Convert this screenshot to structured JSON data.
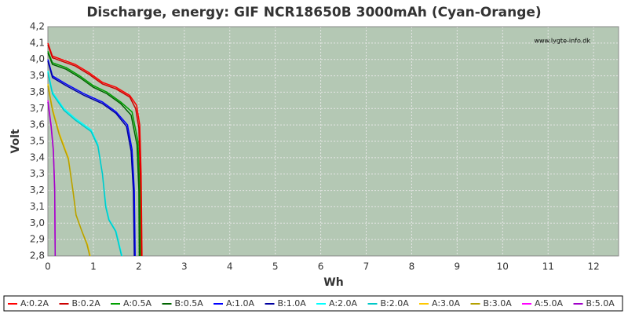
{
  "chart_data": {
    "type": "line",
    "title": "Discharge, energy: GIF NCR18650B 3000mAh (Cyan-Orange)",
    "watermark": "www.lygte-info.dk",
    "x_label": "Wh",
    "y_label": "Volt",
    "xlim": [
      0,
      12.55
    ],
    "ylim": [
      2.8,
      4.2
    ],
    "xticks": [
      0,
      1,
      2,
      3,
      4,
      5,
      6,
      7,
      8,
      9,
      10,
      11,
      12
    ],
    "yticks": [
      {
        "value": 2.8,
        "label": "2,8"
      },
      {
        "value": 2.9,
        "label": "2,9"
      },
      {
        "value": 3.0,
        "label": "3,0"
      },
      {
        "value": 3.1,
        "label": "3,1"
      },
      {
        "value": 3.2,
        "label": "3,2"
      },
      {
        "value": 3.3,
        "label": "3,3"
      },
      {
        "value": 3.4,
        "label": "3,4"
      },
      {
        "value": 3.5,
        "label": "3,5"
      },
      {
        "value": 3.6,
        "label": "3,6"
      },
      {
        "value": 3.7,
        "label": "3,7"
      },
      {
        "value": 3.8,
        "label": "3,8"
      },
      {
        "value": 3.9,
        "label": "3,9"
      },
      {
        "value": 4.0,
        "label": "4,0"
      },
      {
        "value": 4.1,
        "label": "4,1"
      },
      {
        "value": 4.2,
        "label": "4,2"
      }
    ],
    "grid": true,
    "legend": "bottom",
    "series": [
      {
        "name": "A:0.2A",
        "color": "#ff0000",
        "x": [
          0,
          0.1,
          0.3,
          0.6,
          0.9,
          1.2,
          1.5,
          1.8,
          1.95,
          2.02,
          2.05,
          2.07
        ],
        "values": [
          4.1,
          4.02,
          4.0,
          3.97,
          3.92,
          3.86,
          3.83,
          3.78,
          3.72,
          3.6,
          3.3,
          2.8
        ]
      },
      {
        "name": "B:0.2A",
        "color": "#cc0000",
        "x": [
          0,
          0.1,
          0.3,
          0.6,
          0.9,
          1.2,
          1.5,
          1.8,
          1.93,
          2.0,
          2.03,
          2.05
        ],
        "values": [
          4.09,
          4.01,
          3.99,
          3.96,
          3.91,
          3.85,
          3.82,
          3.77,
          3.7,
          3.58,
          3.3,
          2.8
        ]
      },
      {
        "name": "A:0.5A",
        "color": "#00a000",
        "x": [
          0,
          0.1,
          0.4,
          0.7,
          1.0,
          1.3,
          1.6,
          1.85,
          1.98,
          2.02,
          2.03
        ],
        "values": [
          4.05,
          3.98,
          3.95,
          3.9,
          3.84,
          3.8,
          3.74,
          3.68,
          3.5,
          3.2,
          2.8
        ]
      },
      {
        "name": "B:0.5A",
        "color": "#006400",
        "x": [
          0,
          0.1,
          0.4,
          0.7,
          1.0,
          1.3,
          1.6,
          1.83,
          1.96,
          2.0,
          2.01
        ],
        "values": [
          4.04,
          3.97,
          3.94,
          3.89,
          3.83,
          3.79,
          3.73,
          3.66,
          3.48,
          3.2,
          2.8
        ]
      },
      {
        "name": "A:1.0A",
        "color": "#0000ff",
        "x": [
          0,
          0.1,
          0.4,
          0.8,
          1.2,
          1.5,
          1.75,
          1.85,
          1.9,
          1.92
        ],
        "values": [
          4.0,
          3.9,
          3.85,
          3.79,
          3.74,
          3.68,
          3.6,
          3.45,
          3.2,
          2.8
        ]
      },
      {
        "name": "B:1.0A",
        "color": "#0000a0",
        "x": [
          0,
          0.1,
          0.4,
          0.8,
          1.2,
          1.5,
          1.73,
          1.83,
          1.88,
          1.9
        ],
        "values": [
          3.99,
          3.89,
          3.84,
          3.78,
          3.73,
          3.67,
          3.59,
          3.44,
          3.2,
          2.8
        ]
      },
      {
        "name": "A:2.0A",
        "color": "#00ffff",
        "x": [
          0,
          0.1,
          0.35,
          0.6,
          0.95,
          1.1,
          1.2,
          1.28,
          1.35,
          1.5,
          1.63
        ],
        "values": [
          3.93,
          3.8,
          3.7,
          3.64,
          3.57,
          3.48,
          3.3,
          3.1,
          3.02,
          2.95,
          2.8
        ]
      },
      {
        "name": "B:2.0A",
        "color": "#00c8c8",
        "x": [
          0,
          0.1,
          0.35,
          0.6,
          0.95,
          1.1,
          1.2,
          1.27,
          1.34,
          1.49,
          1.62
        ],
        "values": [
          3.92,
          3.79,
          3.69,
          3.63,
          3.56,
          3.47,
          3.3,
          3.1,
          3.02,
          2.95,
          2.8
        ]
      },
      {
        "name": "A:3.0A",
        "color": "#ffc800",
        "x": [
          0,
          0.1,
          0.25,
          0.45,
          0.55,
          0.62,
          0.75,
          0.87,
          0.93
        ],
        "values": [
          3.85,
          3.7,
          3.55,
          3.4,
          3.2,
          3.05,
          2.95,
          2.87,
          2.8
        ]
      },
      {
        "name": "B:3.0A",
        "color": "#b4a000",
        "x": [
          0,
          0.1,
          0.25,
          0.45,
          0.55,
          0.62,
          0.75,
          0.86,
          0.92
        ],
        "values": [
          3.84,
          3.69,
          3.54,
          3.39,
          3.2,
          3.05,
          2.95,
          2.87,
          2.8
        ]
      },
      {
        "name": "A:5.0A",
        "color": "#ff00ff",
        "x": [
          0,
          0.07,
          0.12,
          0.15,
          0.16
        ],
        "values": [
          3.75,
          3.6,
          3.45,
          3.2,
          2.8
        ]
      },
      {
        "name": "B:5.0A",
        "color": "#a000c8",
        "x": [
          0,
          0.07,
          0.12,
          0.15,
          0.16
        ],
        "values": [
          3.74,
          3.59,
          3.44,
          3.2,
          2.8
        ]
      }
    ]
  }
}
